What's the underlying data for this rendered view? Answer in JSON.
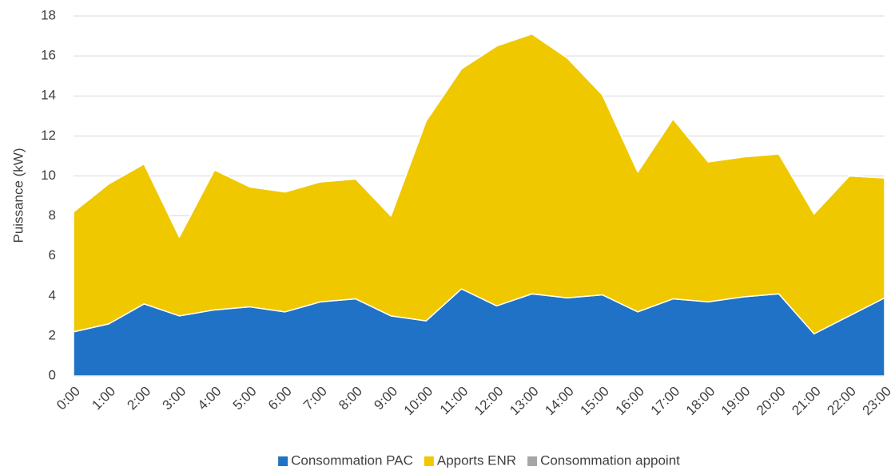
{
  "chart_data": {
    "type": "stacked_area",
    "ylabel": "Puissance (kW)",
    "categories": [
      "0:00",
      "1:00",
      "2:00",
      "3:00",
      "4:00",
      "5:00",
      "6:00",
      "7:00",
      "8:00",
      "9:00",
      "10:00",
      "11:00",
      "12:00",
      "13:00",
      "14:00",
      "15:00",
      "16:00",
      "17:00",
      "18:00",
      "19:00",
      "20:00",
      "21:00",
      "22:00",
      "23:00"
    ],
    "series": [
      {
        "name": "Consommation PAC",
        "color": "#1f72c6",
        "values": [
          2.2,
          2.6,
          3.6,
          3.0,
          3.3,
          3.45,
          3.2,
          3.7,
          3.85,
          3.0,
          2.75,
          4.35,
          3.5,
          4.1,
          3.9,
          4.05,
          3.2,
          3.85,
          3.7,
          3.95,
          4.1,
          2.1,
          3.0,
          3.9
        ]
      },
      {
        "name": "Apports ENR",
        "color": "#f0c800",
        "values": [
          6,
          7,
          7,
          3.95,
          7,
          6,
          6,
          6,
          6,
          5,
          10,
          11,
          13,
          13,
          12,
          10,
          7,
          9,
          7,
          7,
          7,
          6,
          7,
          6
        ]
      },
      {
        "name": "Consommation appoint",
        "color": "#a5a5a5",
        "values": [
          0,
          0,
          0,
          0,
          0,
          0,
          0,
          0,
          0,
          0,
          0,
          0,
          0,
          0,
          0,
          0,
          0,
          0,
          0,
          0,
          0,
          0,
          0,
          0
        ]
      }
    ],
    "ylim": [
      0,
      18
    ],
    "yticks": [
      0,
      2,
      4,
      6,
      8,
      10,
      12,
      14,
      16,
      18
    ],
    "grid": true,
    "legend": "bottom"
  }
}
